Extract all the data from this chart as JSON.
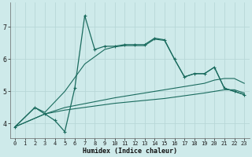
{
  "bg_color": "#ceeaea",
  "line_color": "#1a6b5e",
  "grid_color": "#b8d8d8",
  "xlabel": "Humidex (Indice chaleur)",
  "xlim": [
    -0.5,
    23.5
  ],
  "ylim": [
    3.55,
    7.75
  ],
  "yticks": [
    4,
    5,
    6,
    7
  ],
  "xticks": [
    0,
    1,
    2,
    3,
    4,
    5,
    6,
    7,
    8,
    9,
    10,
    11,
    12,
    13,
    14,
    15,
    16,
    17,
    18,
    19,
    20,
    21,
    22,
    23
  ],
  "s1_x": [
    0,
    2,
    3,
    4,
    5,
    6,
    7,
    8,
    9,
    10,
    11,
    12,
    13,
    14,
    15,
    16,
    17,
    18,
    19,
    20,
    21,
    22,
    23
  ],
  "s1_y": [
    3.9,
    4.5,
    4.3,
    4.1,
    3.75,
    5.1,
    7.35,
    6.3,
    6.4,
    6.4,
    6.45,
    6.45,
    6.45,
    6.65,
    6.6,
    6.0,
    5.45,
    5.55,
    5.55,
    5.75,
    5.1,
    5.0,
    4.9
  ],
  "s2_x": [
    0,
    2,
    3,
    5,
    7,
    9,
    10,
    11,
    12,
    13,
    14,
    15,
    16,
    17,
    18,
    19,
    20,
    21,
    22,
    23
  ],
  "s2_y": [
    3.9,
    4.5,
    4.35,
    5.0,
    5.85,
    6.3,
    6.38,
    6.42,
    6.42,
    6.42,
    6.62,
    6.58,
    6.0,
    5.45,
    5.55,
    5.55,
    5.75,
    5.1,
    5.0,
    4.9
  ],
  "s3_x": [
    0,
    3,
    5,
    10,
    15,
    19,
    20,
    21,
    22,
    23
  ],
  "s3_y": [
    3.9,
    4.3,
    4.42,
    4.63,
    4.78,
    4.95,
    5.0,
    5.05,
    5.05,
    4.95
  ],
  "s4_x": [
    0,
    3,
    5,
    10,
    15,
    19,
    20,
    21,
    22,
    23
  ],
  "s4_y": [
    3.9,
    4.3,
    4.5,
    4.8,
    5.05,
    5.25,
    5.35,
    5.4,
    5.4,
    5.25
  ]
}
